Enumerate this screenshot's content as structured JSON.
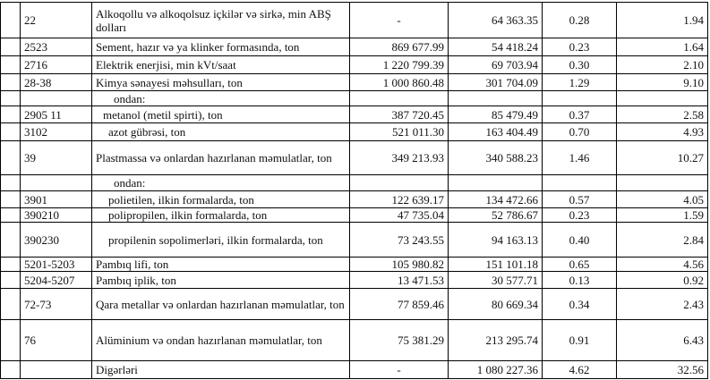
{
  "rows": [
    {
      "code": "22",
      "name": "Alkoqollu və alkoqolsuz içkilər və sirkə, min ABŞ dolları",
      "v1": "-",
      "v2": "64 363.35",
      "v3": "0.28",
      "v4": "1.94",
      "h": 40,
      "indent": ""
    },
    {
      "code": "2523",
      "name": "Sement, hazır və ya klinker formasında, ton",
      "v1": "869 677.99",
      "v2": "54 418.24",
      "v3": "0.23",
      "v4": "1.64",
      "h": 20,
      "indent": ""
    },
    {
      "code": "2716",
      "name": "Elektrik enerjisi, min kVt/saat",
      "v1": "1 220 799.39",
      "v2": "69 703.94",
      "v3": "0.30",
      "v4": "2.10",
      "h": 20,
      "indent": ""
    },
    {
      "code": "28-38",
      "name": "Kimya sənayesi məhsulları, ton",
      "v1": "1 000 860.48",
      "v2": "301 704.09",
      "v3": "1.29",
      "v4": "9.10",
      "h": 19,
      "indent": ""
    },
    {
      "code": "",
      "name": "ondan:",
      "v1": "",
      "v2": "",
      "v3": "",
      "v4": "",
      "h": 17,
      "indent": "ind1"
    },
    {
      "code": "2905 11",
      "name": "metanol (metil spirti), ton",
      "v1": "387 720.45",
      "v2": "85 479.49",
      "v3": "0.37",
      "v4": "2.58",
      "h": 19,
      "indent": "ind2"
    },
    {
      "code": "3102",
      "name": "azot gübrəsi, ton",
      "v1": "521 011.30",
      "v2": "163 404.49",
      "v3": "0.70",
      "v4": "4.93",
      "h": 20,
      "indent": "ind3"
    },
    {
      "code": "39",
      "name": "Plastmassa və onlardan hazırlanan məmulatlar, ton",
      "v1": "349 213.93",
      "v2": "340 588.23",
      "v3": "1.46",
      "v4": "10.27",
      "h": 38,
      "indent": ""
    },
    {
      "code": "",
      "name": "ondan:",
      "v1": "",
      "v2": "",
      "v3": "",
      "v4": "",
      "h": 18,
      "indent": "ind1"
    },
    {
      "code": "3901",
      "name": "polietilen, ilkin formalarda, ton",
      "v1": "122 639.17",
      "v2": "134 472.66",
      "v3": "0.57",
      "v4": "4.05",
      "h": 19,
      "indent": "ind3"
    },
    {
      "code": "390210",
      "name": "polipropilen, ilkin formalarda, ton",
      "v1": "47 735.04",
      "v2": "52 786.67",
      "v3": "0.23",
      "v4": "1.59",
      "h": 15,
      "indent": "ind3"
    },
    {
      "code": "390230",
      "name": "propilenin sopolimerləri, ilkin formalarda, ton",
      "v1": "73 243.55",
      "v2": "94 163.13",
      "v3": "0.40",
      "v4": "2.84",
      "h": 39,
      "indent": "ind3"
    },
    {
      "code": "5201-5203",
      "name": "Pambıq lifi, ton",
      "v1": "105 980.82",
      "v2": "151 101.18",
      "v3": "0.65",
      "v4": "4.56",
      "h": 16,
      "indent": ""
    },
    {
      "code": "5204-5207",
      "name": "Pambıq iplik, ton",
      "v1": "13 471.53",
      "v2": "30 577.71",
      "v3": "0.13",
      "v4": "0.92",
      "h": 19,
      "indent": ""
    },
    {
      "code": "72-73",
      "name": "Qara metallar və onlardan hazırlanan məmulatlar, ton",
      "v1": "77 859.46",
      "v2": "80 669.34",
      "v3": "0.34",
      "v4": "2.43",
      "h": 35,
      "indent": ""
    },
    {
      "code": "76",
      "name": "Alüminium və ondan hazırlanan məmulatlar, ton",
      "v1": "75 381.29",
      "v2": "213 295.74",
      "v3": "0.91",
      "v4": "6.43",
      "h": 46,
      "indent": ""
    },
    {
      "code": "",
      "name": "Digərləri",
      "v1": "-",
      "v2": "1 080 227.36",
      "v3": "4.62",
      "v4": "32.56",
      "h": 20,
      "indent": ""
    }
  ]
}
